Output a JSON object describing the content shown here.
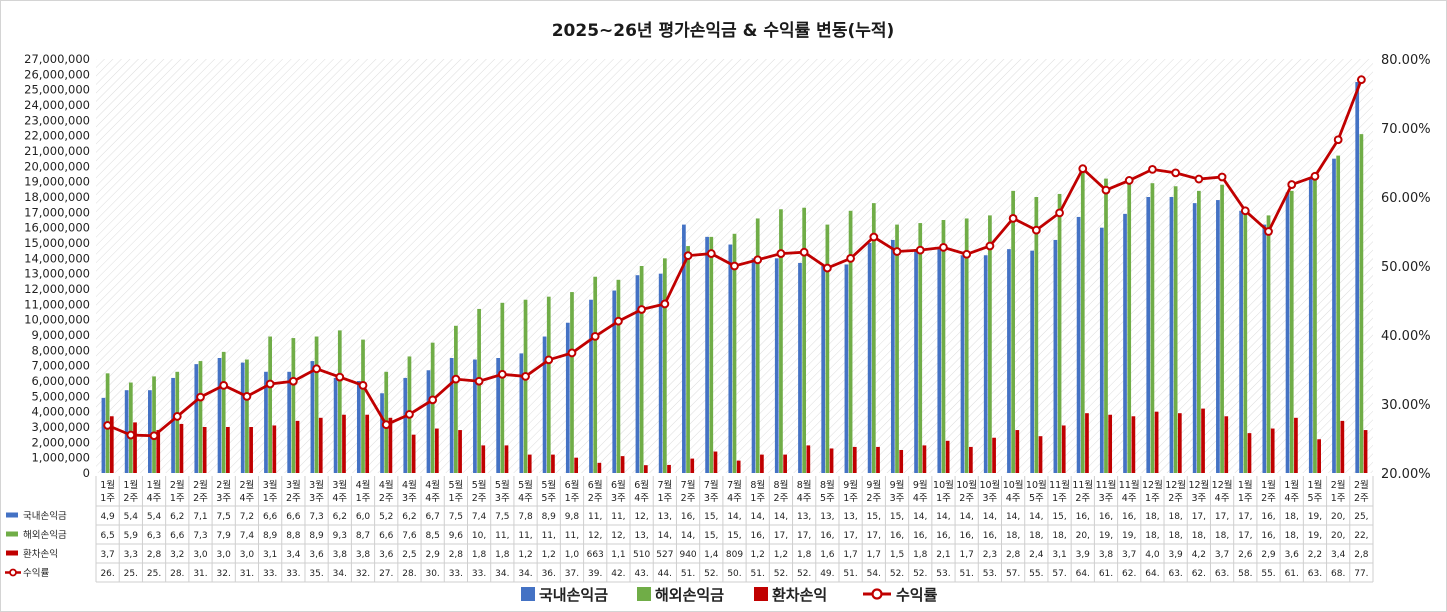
{
  "colors": {
    "domestic": "#4472c4",
    "overseas": "#70ad47",
    "fx": "#c00000",
    "rate": "#c00000",
    "grid_hatch": "#d9d9d9"
  },
  "chart_data": {
    "type": "bar",
    "title": "2025~26년 평가손익금 & 수익률 변동(누적)",
    "categories": [
      [
        "1월",
        "1주"
      ],
      [
        "1월",
        "2주"
      ],
      [
        "1월",
        "4주"
      ],
      [
        "2월",
        "1주"
      ],
      [
        "2월",
        "2주"
      ],
      [
        "2월",
        "3주"
      ],
      [
        "2월",
        "4주"
      ],
      [
        "3월",
        "1주"
      ],
      [
        "3월",
        "2주"
      ],
      [
        "3월",
        "3주"
      ],
      [
        "3월",
        "4주"
      ],
      [
        "4월",
        "1주"
      ],
      [
        "4월",
        "2주"
      ],
      [
        "4월",
        "3주"
      ],
      [
        "4월",
        "4주"
      ],
      [
        "5월",
        "1주"
      ],
      [
        "5월",
        "2주"
      ],
      [
        "5월",
        "3주"
      ],
      [
        "5월",
        "4주"
      ],
      [
        "5월",
        "5주"
      ],
      [
        "6월",
        "1주"
      ],
      [
        "6월",
        "2주"
      ],
      [
        "6월",
        "3주"
      ],
      [
        "6월",
        "4주"
      ],
      [
        "7월",
        "1주"
      ],
      [
        "7월",
        "2주"
      ],
      [
        "7월",
        "3주"
      ],
      [
        "7월",
        "4주"
      ],
      [
        "8월",
        "1주"
      ],
      [
        "8월",
        "2주"
      ],
      [
        "8월",
        "4주"
      ],
      [
        "8월",
        "5주"
      ],
      [
        "9월",
        "1주"
      ],
      [
        "9월",
        "2주"
      ],
      [
        "9월",
        "3주"
      ],
      [
        "9월",
        "4주"
      ],
      [
        "10월",
        "1주"
      ],
      [
        "10월",
        "2주"
      ],
      [
        "10월",
        "3주"
      ],
      [
        "10월",
        "4주"
      ],
      [
        "10월",
        "5주"
      ],
      [
        "11월",
        "1주"
      ],
      [
        "11월",
        "2주"
      ],
      [
        "11월",
        "3주"
      ],
      [
        "11월",
        "4주"
      ],
      [
        "12월",
        "1주"
      ],
      [
        "12월",
        "2주"
      ],
      [
        "12월",
        "3주"
      ],
      [
        "12월",
        "4주"
      ],
      [
        "1월",
        "1주"
      ],
      [
        "1월",
        "2주"
      ],
      [
        "1월",
        "4주"
      ],
      [
        "1월",
        "5주"
      ],
      [
        "2월",
        "1주"
      ],
      [
        "2월",
        "2주"
      ]
    ],
    "series": [
      {
        "name": "국내손익금",
        "kind": "bar",
        "axis": "left",
        "color": "#4472c4",
        "values": [
          4900000,
          5400000,
          5400000,
          6200000,
          7100000,
          7500000,
          7200000,
          6600000,
          6600000,
          7300000,
          6200000,
          6000000,
          5200000,
          6200000,
          6700000,
          7500000,
          7400000,
          7500000,
          7800000,
          8900000,
          9800000,
          11300000,
          11900000,
          12900000,
          13000000,
          16200000,
          15400000,
          14900000,
          14000000,
          14000000,
          13700000,
          13500000,
          13600000,
          15000000,
          15200000,
          14600000,
          14600000,
          14200000,
          14200000,
          14600000,
          14500000,
          15200000,
          16700000,
          16000000,
          16900000,
          18000000,
          18000000,
          17600000,
          17800000,
          17100000,
          16200000,
          18300000,
          19200000,
          20500000,
          25500000
        ]
      },
      {
        "name": "해외손익금",
        "kind": "bar",
        "axis": "left",
        "color": "#70ad47",
        "values": [
          6500000,
          5900000,
          6300000,
          6600000,
          7300000,
          7900000,
          7400000,
          8900000,
          8800000,
          8900000,
          9300000,
          8700000,
          6600000,
          7600000,
          8500000,
          9600000,
          10700000,
          11100000,
          11300000,
          11500000,
          11800000,
          12800000,
          12600000,
          13500000,
          14000000,
          14800000,
          15400000,
          15600000,
          16600000,
          17200000,
          17300000,
          16200000,
          17100000,
          17600000,
          16200000,
          16300000,
          16500000,
          16600000,
          16800000,
          18400000,
          18000000,
          18200000,
          20100000,
          19200000,
          19300000,
          18900000,
          18700000,
          18400000,
          18800000,
          17100000,
          16800000,
          18400000,
          19600000,
          20700000,
          22100000
        ]
      },
      {
        "name": "환차손익",
        "kind": "bar",
        "axis": "left",
        "color": "#c00000",
        "values": [
          3700000,
          3300000,
          2800000,
          3200000,
          3000000,
          3000000,
          3000000,
          3100000,
          3400000,
          3600000,
          3800000,
          3800000,
          3600000,
          2500000,
          2900000,
          2800000,
          1800000,
          1800000,
          1200000,
          1200000,
          1000000,
          663000,
          1100000,
          510000,
          527000,
          940000,
          1400000,
          809000,
          1200000,
          1200000,
          1800000,
          1600000,
          1700000,
          1700000,
          1500000,
          1800000,
          2100000,
          1700000,
          2300000,
          2800000,
          2400000,
          3100000,
          3900000,
          3800000,
          3700000,
          4000000,
          3900000,
          4200000,
          3700000,
          2600000,
          2900000,
          3600000,
          2200000,
          3400000,
          2800000
        ]
      },
      {
        "name": "수익률",
        "kind": "line",
        "axis": "right",
        "color": "#c00000",
        "values": [
          26.9,
          25.5,
          25.4,
          28.2,
          31.0,
          32.7,
          31.1,
          32.9,
          33.3,
          35.1,
          33.9,
          32.7,
          27.0,
          28.5,
          30.6,
          33.6,
          33.3,
          34.3,
          34.0,
          36.4,
          37.4,
          39.8,
          42.0,
          43.7,
          44.5,
          51.5,
          51.8,
          50.0,
          50.9,
          51.8,
          52.0,
          49.7,
          51.1,
          54.2,
          52.1,
          52.3,
          52.7,
          51.7,
          52.9,
          56.9,
          55.2,
          57.7,
          64.1,
          61.0,
          62.4,
          64.0,
          63.5,
          62.6,
          62.9,
          58.0,
          55.0,
          61.8,
          63.0,
          68.3,
          77.0
        ]
      }
    ],
    "table_cells": [
      [
        "4,9",
        "5,4",
        "5,4",
        "6,2",
        "7,1",
        "7,5",
        "7,2",
        "6,6",
        "6,6",
        "7,3",
        "6,2",
        "6,0",
        "5,2",
        "6,2",
        "6,7",
        "7,5",
        "7,4",
        "7,5",
        "7,8",
        "8,9",
        "9,8",
        "11,",
        "11,",
        "12,",
        "13,",
        "16,",
        "15,",
        "14,",
        "14,",
        "14,",
        "13,",
        "13,",
        "13,",
        "15,",
        "15,",
        "14,",
        "14,",
        "14,",
        "14,",
        "14,",
        "14,",
        "15,",
        "16,",
        "16,",
        "16,",
        "18,",
        "18,",
        "17,",
        "17,",
        "17,",
        "16,",
        "18,",
        "19,",
        "20,",
        "25,"
      ],
      [
        "6,5",
        "5,9",
        "6,3",
        "6,6",
        "7,3",
        "7,9",
        "7,4",
        "8,9",
        "8,8",
        "8,9",
        "9,3",
        "8,7",
        "6,6",
        "7,6",
        "8,5",
        "9,6",
        "10,",
        "11,",
        "11,",
        "11,",
        "11,",
        "12,",
        "12,",
        "13,",
        "14,",
        "14,",
        "15,",
        "15,",
        "16,",
        "17,",
        "17,",
        "16,",
        "17,",
        "17,",
        "16,",
        "16,",
        "16,",
        "16,",
        "16,",
        "18,",
        "18,",
        "18,",
        "20,",
        "19,",
        "19,",
        "18,",
        "18,",
        "18,",
        "18,",
        "17,",
        "16,",
        "18,",
        "19,",
        "20,",
        "22,"
      ],
      [
        "3,7",
        "3,3",
        "2,8",
        "3,2",
        "3,0",
        "3,0",
        "3,0",
        "3,1",
        "3,4",
        "3,6",
        "3,8",
        "3,8",
        "3,6",
        "2,5",
        "2,9",
        "2,8",
        "1,8",
        "1,8",
        "1,2",
        "1,2",
        "1,0",
        "663",
        "1,1",
        "510",
        "527",
        "940",
        "1,4",
        "809",
        "1,2",
        "1,2",
        "1,8",
        "1,6",
        "1,7",
        "1,7",
        "1,5",
        "1,8",
        "2,1",
        "1,7",
        "2,3",
        "2,8",
        "2,4",
        "3,1",
        "3,9",
        "3,8",
        "3,7",
        "4,0",
        "3,9",
        "4,2",
        "3,7",
        "2,6",
        "2,9",
        "3,6",
        "2,2",
        "3,4",
        "2,8"
      ],
      [
        "26.",
        "25.",
        "25.",
        "28.",
        "31.",
        "32.",
        "31.",
        "33.",
        "33.",
        "35.",
        "34.",
        "32.",
        "27.",
        "28.",
        "30.",
        "33.",
        "33.",
        "34.",
        "34.",
        "36.",
        "37.",
        "39.",
        "42.",
        "43.",
        "44.",
        "51.",
        "52.",
        "50.",
        "51.",
        "52.",
        "52.",
        "49.",
        "51.",
        "54.",
        "52.",
        "52.",
        "53.",
        "51.",
        "53.",
        "57.",
        "55.",
        "57.",
        "64.",
        "61.",
        "62.",
        "64.",
        "63.",
        "62.",
        "63.",
        "58.",
        "55.",
        "61.",
        "63.",
        "68.",
        "77."
      ]
    ],
    "y_left": {
      "min": 0,
      "max": 27000000,
      "step": 1000000,
      "tick_labels": [
        "0",
        "1,000,000",
        "2,000,000",
        "3,000,000",
        "4,000,000",
        "5,000,000",
        "6,000,000",
        "7,000,000",
        "8,000,000",
        "9,000,000",
        "10,000,000",
        "11,000,000",
        "12,000,000",
        "13,000,000",
        "14,000,000",
        "15,000,000",
        "16,000,000",
        "17,000,000",
        "18,000,000",
        "19,000,000",
        "20,000,000",
        "21,000,000",
        "22,000,000",
        "23,000,000",
        "24,000,000",
        "25,000,000",
        "26,000,000",
        "27,000,000"
      ]
    },
    "y_right": {
      "min": 20,
      "max": 80,
      "step": 10,
      "tick_labels": [
        "20.00%",
        "30.00%",
        "40.00%",
        "50.00%",
        "60.00%",
        "70.00%",
        "80.00%"
      ]
    },
    "legend": [
      "국내손익금",
      "해외손익금",
      "환차손익",
      "수익률"
    ],
    "legend_position": "bottom",
    "grid": false,
    "plot_background": "diagonal-hatch"
  }
}
